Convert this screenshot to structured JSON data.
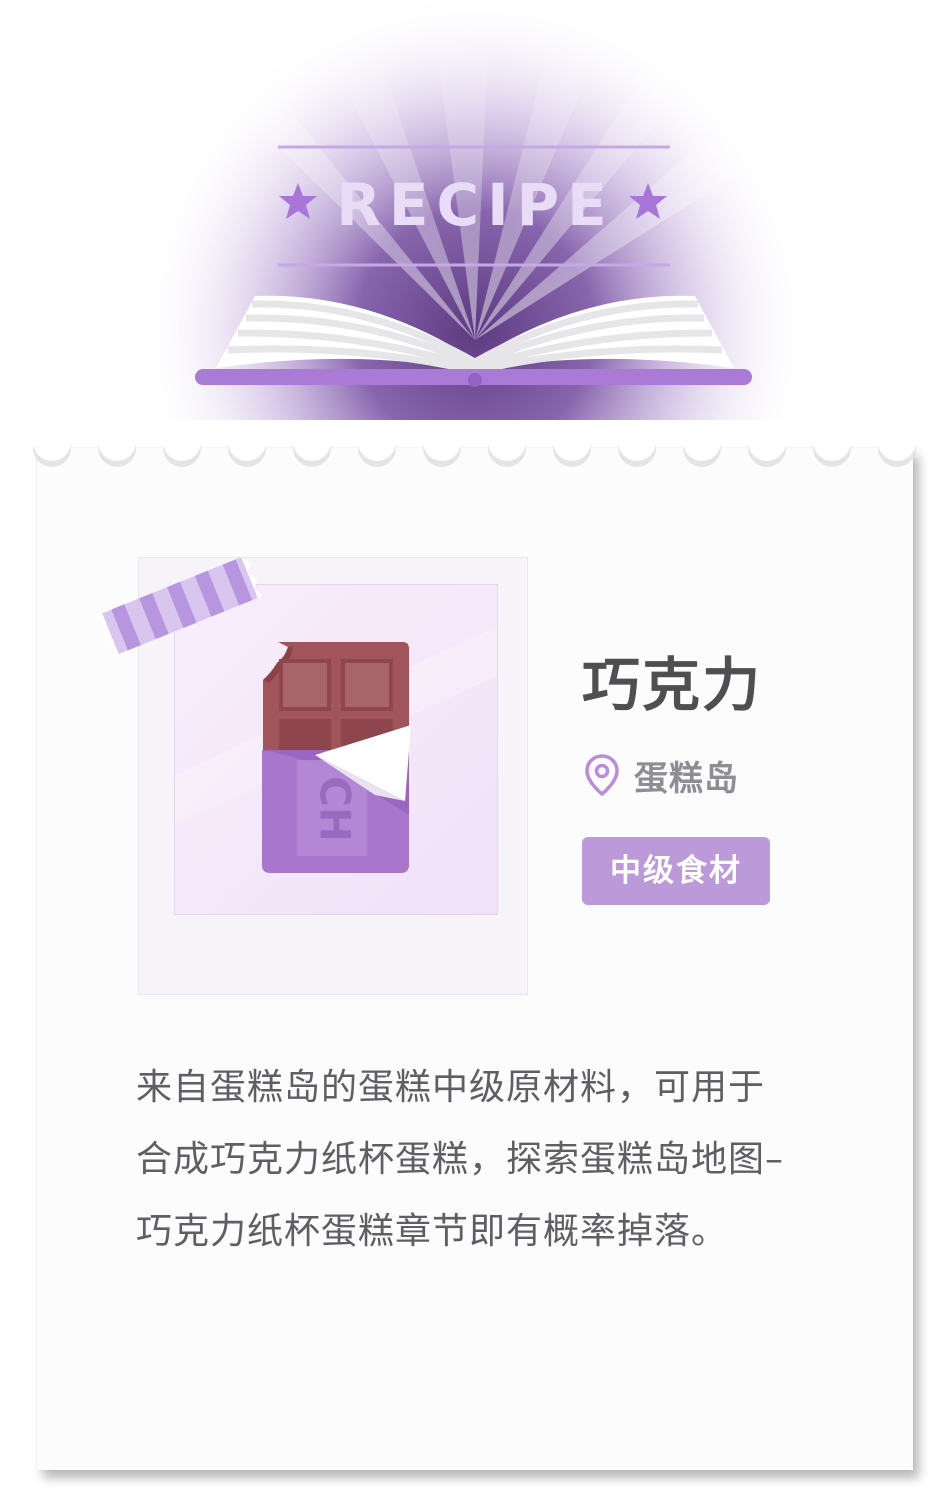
{
  "header": {
    "title": "RECIPE"
  },
  "item": {
    "name": "巧克力",
    "image_label": "CH",
    "location": "蛋糕岛",
    "tier": "中级食材",
    "description": "来自蛋糕岛的蛋糕中级原材料，可用于合成巧克力纸杯蛋糕，探索蛋糕岛地图–巧克力纸杯蛋糕章节即有概率掉落。"
  },
  "icons": {
    "location": "map-pin-icon",
    "stars": "star-icon",
    "book": "open-book-icon"
  },
  "colors": {
    "accent": "#b88ddc",
    "badge": "#bc99d9",
    "title_text": "#4f4f52",
    "body_text": "#5e5e63",
    "chocolate": "#a1545b",
    "wrapper": "#a876cc"
  }
}
